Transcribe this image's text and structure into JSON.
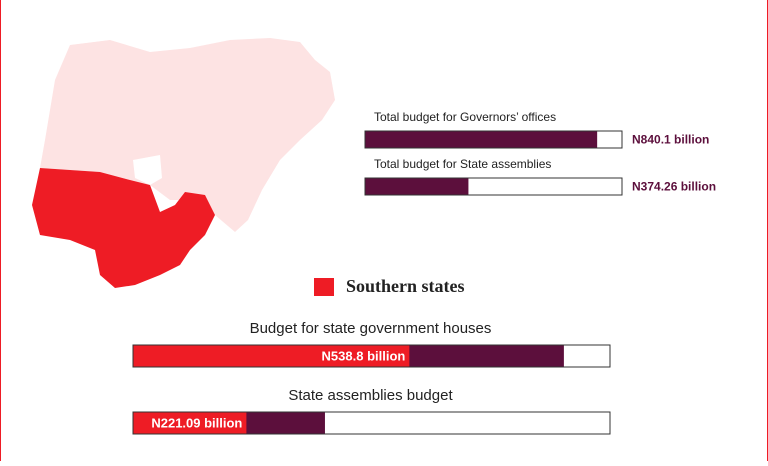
{
  "chart_data": [
    {
      "type": "bar",
      "categories": [
        "Total budget for Governors’ offices",
        "Total budget for State assemblies"
      ],
      "values": [
        840.1,
        374.26
      ],
      "value_labels": [
        "N840.1 billion",
        "N374.26 billion"
      ],
      "color": "#5c0f3c",
      "xlim": [
        0,
        930
      ]
    },
    {
      "type": "bar",
      "categories": [
        "Budget for state government houses",
        "State assemblies budget"
      ],
      "series": [
        {
          "name": "Southern states",
          "color": "#ee1c25",
          "values": [
            538.8,
            221.09
          ],
          "value_labels": [
            "N538.8 billion",
            "N221.09 billion"
          ]
        },
        {
          "color": "#5c0f3c",
          "values": [
            840.1,
            374.26
          ]
        }
      ],
      "xlim": [
        0,
        930
      ]
    }
  ]
}
